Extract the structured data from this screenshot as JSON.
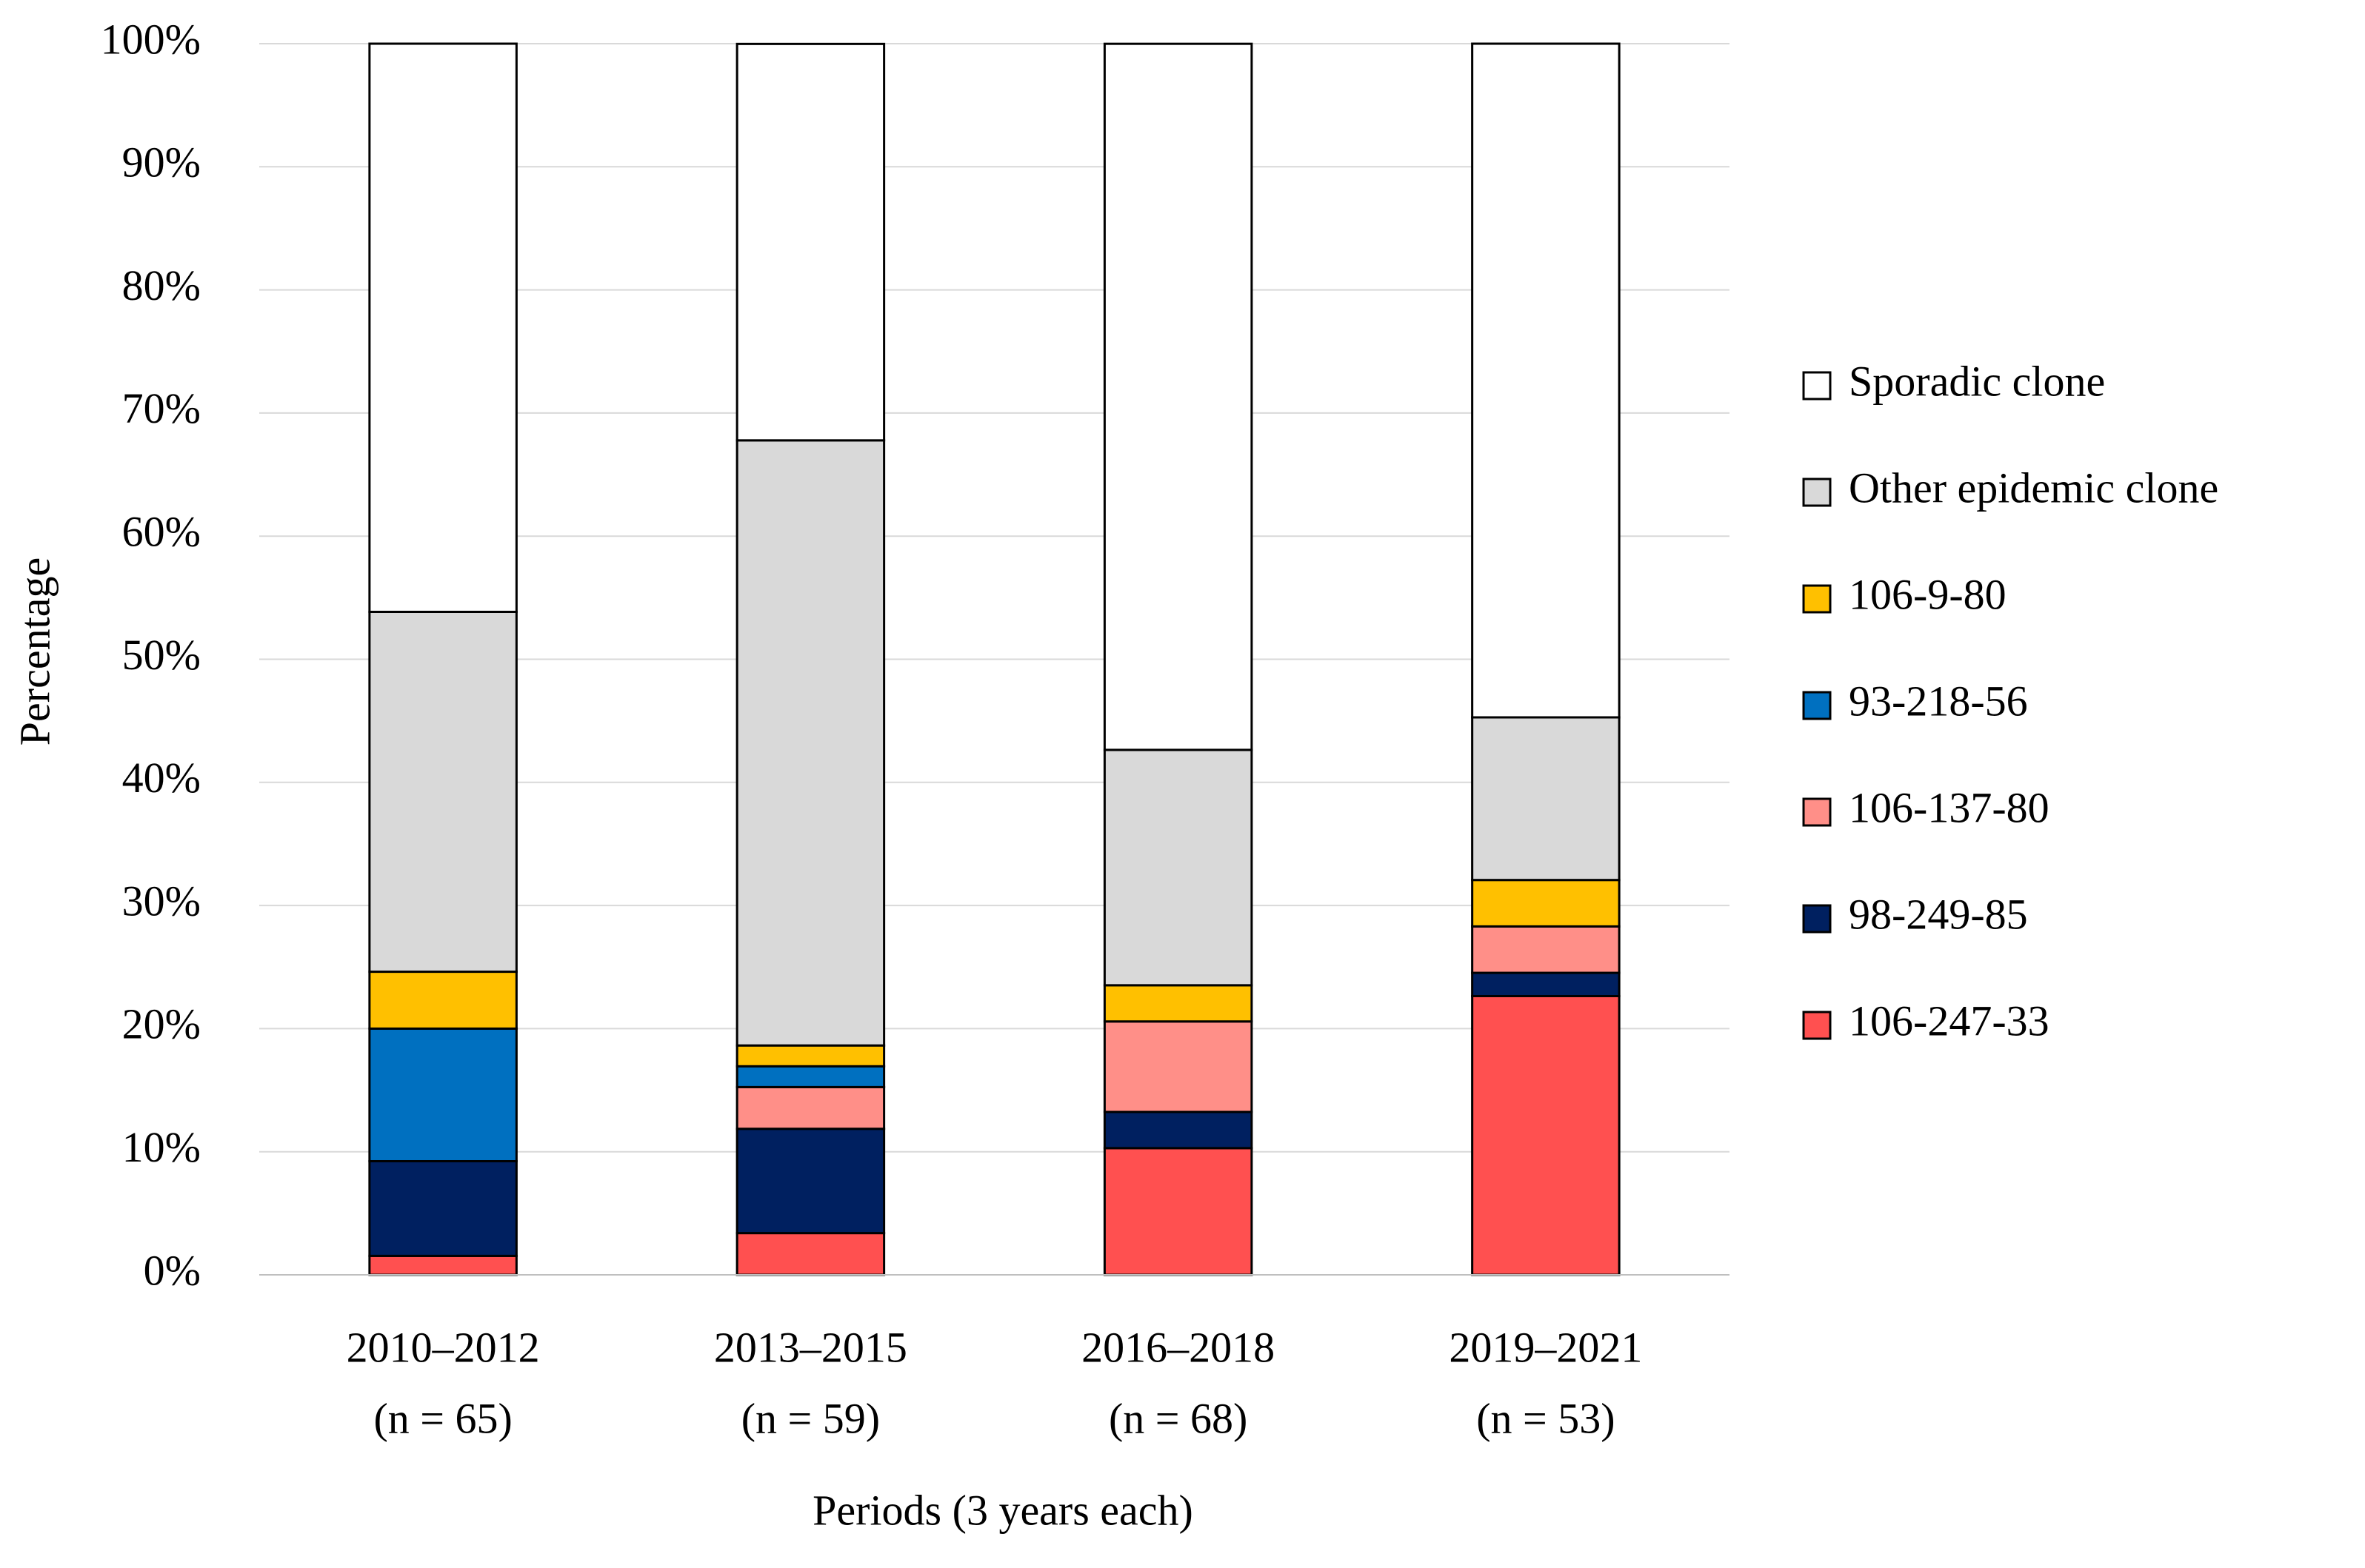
{
  "chart_data": {
    "type": "stacked_bar",
    "x_label": "Periods (3 years each)",
    "y_label": "Percentage",
    "categories": [
      "2010–2012",
      "2013–2015",
      "2016–2018",
      "2019–2021"
    ],
    "category_sublabels": [
      "(n = 65)",
      "(n = 59)",
      "(n = 68)",
      "(n = 53)"
    ],
    "series": [
      {
        "name": "106-247-33",
        "color": "#ff5050",
        "values": [
          1.54,
          3.39,
          10.29,
          22.64
        ]
      },
      {
        "name": "98-249-85",
        "color": "#002060",
        "values": [
          7.69,
          8.47,
          2.94,
          1.89
        ]
      },
      {
        "name": "106-137-80",
        "color": "#ff8f88",
        "values": [
          0,
          3.39,
          7.35,
          3.77
        ]
      },
      {
        "name": "93-218-56",
        "color": "#0070c0",
        "values": [
          10.77,
          1.69,
          0,
          0
        ]
      },
      {
        "name": "106-9-80",
        "color": "#ffc000",
        "values": [
          4.62,
          1.69,
          2.94,
          3.77
        ]
      },
      {
        "name": "Other epidemic clone",
        "color": "#d9d9d9",
        "values": [
          29.23,
          49.15,
          19.12,
          13.21
        ]
      },
      {
        "name": "Sporadic clone",
        "color": "#ffffff",
        "values": [
          46.15,
          32.2,
          57.35,
          54.72
        ]
      }
    ],
    "ylim": [
      0,
      100
    ],
    "yticks": [
      {
        "value": 0,
        "label": "0%"
      },
      {
        "value": 10,
        "label": "10%"
      },
      {
        "value": 20,
        "label": "20%"
      },
      {
        "value": 30,
        "label": "30%"
      },
      {
        "value": 40,
        "label": "40%"
      },
      {
        "value": 50,
        "label": "50%"
      },
      {
        "value": 60,
        "label": "60%"
      },
      {
        "value": 70,
        "label": "70%"
      },
      {
        "value": 80,
        "label": "80%"
      },
      {
        "value": 90,
        "label": "90%"
      },
      {
        "value": 100,
        "label": "100%"
      }
    ],
    "grid": true,
    "legend": "right"
  }
}
